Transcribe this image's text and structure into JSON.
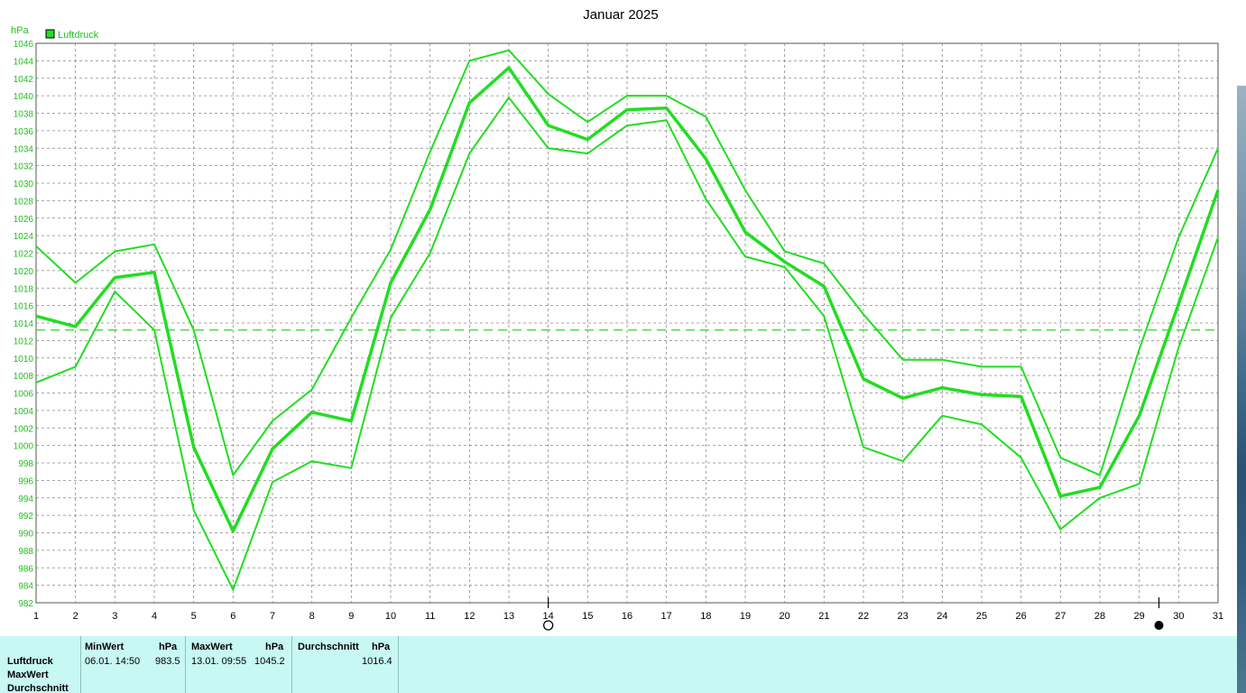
{
  "chart_data": {
    "type": "line",
    "title": "Januar 2025",
    "ylabel": "hPa",
    "legend": {
      "label": "Luftdruck",
      "placement": "top-left",
      "color": "#22dd22"
    },
    "ylim": [
      982,
      1046
    ],
    "ytick_step": 2,
    "x": [
      1,
      2,
      3,
      4,
      5,
      6,
      7,
      8,
      9,
      10,
      11,
      12,
      13,
      14,
      15,
      16,
      17,
      18,
      19,
      20,
      21,
      22,
      23,
      24,
      25,
      26,
      27,
      28,
      29,
      30,
      31
    ],
    "series": [
      {
        "name": "Luftdruck",
        "role": "max",
        "values": [
          1022.8,
          1018.6,
          1022.2,
          1023.0,
          1013.2,
          996.6,
          1002.8,
          1006.4,
          1014.6,
          1022.4,
          1033.6,
          1044.0,
          1045.2,
          1040.2,
          1037.0,
          1040.0,
          1040.0,
          1037.6,
          1029.2,
          1022.2,
          1020.8,
          1015.0,
          1009.8,
          1009.8,
          1009.0,
          1009.0,
          998.6,
          996.6,
          1011.0,
          1023.8,
          1034.0
        ]
      },
      {
        "name": "Luftdruck",
        "role": "mean",
        "values": [
          1014.8,
          1013.6,
          1019.2,
          1019.8,
          999.8,
          990.2,
          999.6,
          1003.8,
          1002.8,
          1018.6,
          1027.0,
          1039.2,
          1043.2,
          1036.6,
          1035.0,
          1038.4,
          1038.6,
          1032.8,
          1024.4,
          1021.0,
          1018.2,
          1007.6,
          1005.4,
          1006.6,
          1005.8,
          1005.6,
          994.2,
          995.2,
          1003.4,
          1016.2,
          1029.2
        ]
      },
      {
        "name": "Luftdruck",
        "role": "min",
        "values": [
          1007.2,
          1009.0,
          1017.6,
          1013.2,
          992.6,
          983.5,
          995.8,
          998.2,
          997.4,
          1014.6,
          1022.0,
          1033.4,
          1039.8,
          1034.0,
          1033.4,
          1036.6,
          1037.2,
          1028.2,
          1021.6,
          1020.4,
          1014.8,
          999.8,
          998.2,
          1003.4,
          1002.4,
          998.6,
          990.4,
          994.0,
          995.6,
          1011.2,
          1023.8
        ]
      }
    ],
    "average_line": 1013.2,
    "moon_phases": [
      {
        "day": 14,
        "phase": "full-moon",
        "symbol": "O"
      },
      {
        "day": 29.5,
        "phase": "new-moon",
        "symbol": "●"
      }
    ],
    "grid": true
  },
  "stats": {
    "row_labels": [
      "Luftdruck",
      "MaxWert",
      "Durchschnitt"
    ],
    "min": {
      "header": "MinWert",
      "unit": "hPa",
      "time": "06.01.  14:50",
      "value": "983.5"
    },
    "max": {
      "header": "MaxWert",
      "unit": "hPa",
      "time": "13.01.  09:55",
      "value": "1045.2"
    },
    "avg": {
      "header": "Durchschnitt",
      "unit": "hPa",
      "value": "1016.4"
    }
  }
}
